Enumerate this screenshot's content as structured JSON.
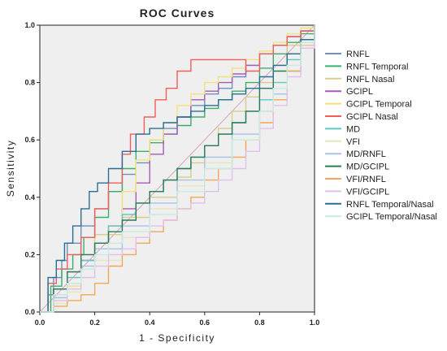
{
  "chart_data": {
    "type": "line",
    "title": "ROC Curves",
    "xlabel": "1 - Specificity",
    "ylabel": "Sensitivity",
    "xlim": [
      0,
      1
    ],
    "ylim": [
      0,
      1
    ],
    "xticks": [
      "0.0",
      "0.2",
      "0.4",
      "0.6",
      "0.8",
      "1.0"
    ],
    "yticks": [
      "0.0",
      "0.2",
      "0.4",
      "0.6",
      "0.8",
      "1.0"
    ],
    "grid": false,
    "background": "#efefef",
    "legend_position": "right",
    "reference_line": {
      "x": [
        0,
        1
      ],
      "y": [
        0,
        1
      ]
    },
    "series": [
      {
        "name": "RNFL",
        "color": "#6f8fc4",
        "x": [
          0,
          0.03,
          0.05,
          0.08,
          0.1,
          0.15,
          0.2,
          0.25,
          0.3,
          0.35,
          0.4,
          0.45,
          0.5,
          0.55,
          0.6,
          0.65,
          0.7,
          0.75,
          0.8,
          0.85,
          0.9,
          0.95,
          1.0
        ],
        "y": [
          0,
          0.06,
          0.12,
          0.18,
          0.24,
          0.3,
          0.36,
          0.42,
          0.48,
          0.52,
          0.6,
          0.64,
          0.68,
          0.72,
          0.76,
          0.78,
          0.82,
          0.86,
          0.9,
          0.93,
          0.96,
          0.98,
          1.0
        ]
      },
      {
        "name": "RNFL Temporal",
        "color": "#3cb06a",
        "x": [
          0,
          0.04,
          0.08,
          0.12,
          0.16,
          0.2,
          0.25,
          0.3,
          0.35,
          0.4,
          0.45,
          0.5,
          0.55,
          0.6,
          0.65,
          0.7,
          0.75,
          0.8,
          0.85,
          0.9,
          0.95,
          1.0
        ],
        "y": [
          0,
          0.09,
          0.15,
          0.2,
          0.26,
          0.33,
          0.42,
          0.5,
          0.56,
          0.59,
          0.62,
          0.65,
          0.68,
          0.71,
          0.74,
          0.77,
          0.8,
          0.85,
          0.9,
          0.94,
          0.97,
          1.0
        ]
      },
      {
        "name": "RNFL Nasal",
        "color": "#d8cd8a",
        "x": [
          0,
          0.05,
          0.1,
          0.15,
          0.2,
          0.3,
          0.4,
          0.5,
          0.55,
          0.6,
          0.65,
          0.7,
          0.75,
          0.8,
          0.85,
          0.9,
          1.0
        ],
        "y": [
          0,
          0.05,
          0.12,
          0.2,
          0.27,
          0.33,
          0.4,
          0.47,
          0.52,
          0.58,
          0.64,
          0.7,
          0.75,
          0.8,
          0.86,
          0.93,
          1.0
        ]
      },
      {
        "name": "GCIPL",
        "color": "#a85bb5",
        "x": [
          0,
          0.05,
          0.1,
          0.15,
          0.2,
          0.25,
          0.3,
          0.35,
          0.4,
          0.45,
          0.5,
          0.55,
          0.6,
          0.65,
          0.7,
          0.75,
          0.8,
          0.85,
          0.9,
          0.95,
          1.0
        ],
        "y": [
          0,
          0.08,
          0.14,
          0.18,
          0.24,
          0.3,
          0.36,
          0.45,
          0.55,
          0.62,
          0.68,
          0.74,
          0.77,
          0.8,
          0.83,
          0.86,
          0.9,
          0.93,
          0.96,
          0.98,
          1.0
        ]
      },
      {
        "name": "GCIPL Temporal",
        "color": "#f2e27a",
        "x": [
          0,
          0.05,
          0.1,
          0.15,
          0.2,
          0.25,
          0.3,
          0.35,
          0.4,
          0.45,
          0.5,
          0.55,
          0.6,
          0.65,
          0.7,
          0.75,
          0.8,
          0.85,
          0.9,
          0.95,
          1.0
        ],
        "y": [
          0,
          0.04,
          0.09,
          0.15,
          0.22,
          0.3,
          0.42,
          0.53,
          0.6,
          0.66,
          0.72,
          0.76,
          0.8,
          0.82,
          0.85,
          0.88,
          0.91,
          0.94,
          0.97,
          0.99,
          1.0
        ]
      },
      {
        "name": "GCIPL Nasal",
        "color": "#f0605a",
        "x": [
          0,
          0.03,
          0.06,
          0.1,
          0.15,
          0.2,
          0.25,
          0.3,
          0.33,
          0.38,
          0.42,
          0.46,
          0.5,
          0.55,
          0.6,
          0.65,
          0.7,
          0.75,
          0.8,
          0.85,
          0.9,
          0.95,
          1.0
        ],
        "y": [
          0,
          0.1,
          0.15,
          0.2,
          0.26,
          0.36,
          0.45,
          0.55,
          0.62,
          0.68,
          0.74,
          0.78,
          0.84,
          0.88,
          0.88,
          0.88,
          0.88,
          0.84,
          0.9,
          0.93,
          0.96,
          0.98,
          1.0
        ]
      },
      {
        "name": "MD",
        "color": "#5ecac7",
        "x": [
          0,
          0.05,
          0.1,
          0.15,
          0.2,
          0.25,
          0.3,
          0.35,
          0.4,
          0.45,
          0.5,
          0.55,
          0.6,
          0.65,
          0.7,
          0.75,
          0.8,
          0.85,
          0.9,
          0.95,
          1.0
        ],
        "y": [
          0,
          0.06,
          0.12,
          0.18,
          0.24,
          0.3,
          0.34,
          0.38,
          0.42,
          0.46,
          0.5,
          0.54,
          0.58,
          0.62,
          0.66,
          0.7,
          0.74,
          0.8,
          0.88,
          0.94,
          1.0
        ]
      },
      {
        "name": "VFI",
        "color": "#e6e6c0",
        "x": [
          0,
          0.05,
          0.1,
          0.15,
          0.2,
          0.3,
          0.4,
          0.5,
          0.6,
          0.7,
          0.8,
          0.85,
          0.9,
          0.95,
          1.0
        ],
        "y": [
          0,
          0.03,
          0.07,
          0.12,
          0.18,
          0.26,
          0.36,
          0.44,
          0.52,
          0.6,
          0.7,
          0.76,
          0.84,
          0.92,
          1.0
        ]
      },
      {
        "name": "MD/RNFL",
        "color": "#a9c3e8",
        "x": [
          0,
          0.05,
          0.1,
          0.15,
          0.2,
          0.3,
          0.4,
          0.5,
          0.6,
          0.7,
          0.8,
          0.85,
          0.9,
          0.95,
          1.0
        ],
        "y": [
          0,
          0.05,
          0.1,
          0.16,
          0.22,
          0.3,
          0.38,
          0.46,
          0.54,
          0.62,
          0.7,
          0.76,
          0.84,
          0.92,
          1.0
        ]
      },
      {
        "name": "MD/GCIPL",
        "color": "#2e7a55",
        "x": [
          0,
          0.05,
          0.1,
          0.15,
          0.2,
          0.25,
          0.3,
          0.35,
          0.4,
          0.45,
          0.5,
          0.55,
          0.6,
          0.65,
          0.7,
          0.75,
          0.8,
          0.85,
          0.9,
          0.95,
          1.0
        ],
        "y": [
          0,
          0.08,
          0.14,
          0.2,
          0.24,
          0.28,
          0.32,
          0.38,
          0.42,
          0.46,
          0.5,
          0.54,
          0.58,
          0.62,
          0.66,
          0.7,
          0.78,
          0.84,
          0.9,
          0.95,
          1.0
        ]
      },
      {
        "name": "VFI/RNFL",
        "color": "#f2a857",
        "x": [
          0,
          0.05,
          0.1,
          0.15,
          0.2,
          0.25,
          0.3,
          0.35,
          0.4,
          0.45,
          0.5,
          0.55,
          0.6,
          0.65,
          0.7,
          0.75,
          0.8,
          0.85,
          0.9,
          0.95,
          1.0
        ],
        "y": [
          0,
          0.02,
          0.04,
          0.06,
          0.1,
          0.16,
          0.2,
          0.24,
          0.28,
          0.32,
          0.36,
          0.4,
          0.46,
          0.5,
          0.54,
          0.6,
          0.66,
          0.74,
          0.84,
          0.94,
          1.0
        ]
      },
      {
        "name": "VFI/GCIPL",
        "color": "#e3c0ec",
        "x": [
          0,
          0.05,
          0.1,
          0.15,
          0.2,
          0.25,
          0.3,
          0.35,
          0.4,
          0.45,
          0.5,
          0.55,
          0.6,
          0.65,
          0.7,
          0.75,
          0.8,
          0.85,
          0.9,
          0.95,
          1.0
        ],
        "y": [
          0,
          0.04,
          0.08,
          0.12,
          0.16,
          0.2,
          0.22,
          0.26,
          0.3,
          0.32,
          0.36,
          0.38,
          0.42,
          0.46,
          0.5,
          0.56,
          0.64,
          0.72,
          0.82,
          0.92,
          1.0
        ]
      },
      {
        "name": "RNFL Temporal/Nasal",
        "color": "#2a6f96",
        "x": [
          0,
          0.03,
          0.06,
          0.09,
          0.12,
          0.15,
          0.18,
          0.21,
          0.25,
          0.3,
          0.35,
          0.4,
          0.45,
          0.5,
          0.55,
          0.6,
          0.65,
          0.7,
          0.75,
          0.8,
          0.85,
          0.9,
          0.95,
          1.0
        ],
        "y": [
          0,
          0.12,
          0.18,
          0.24,
          0.3,
          0.36,
          0.42,
          0.45,
          0.5,
          0.56,
          0.62,
          0.64,
          0.66,
          0.68,
          0.7,
          0.72,
          0.74,
          0.76,
          0.78,
          0.82,
          0.86,
          0.9,
          0.95,
          1.0
        ]
      },
      {
        "name": "GCIPL Temporal/Nasal",
        "color": "#c7ece2",
        "x": [
          0,
          0.05,
          0.1,
          0.15,
          0.2,
          0.25,
          0.3,
          0.4,
          0.5,
          0.6,
          0.7,
          0.8,
          0.85,
          0.9,
          0.95,
          1.0
        ],
        "y": [
          0,
          0.06,
          0.1,
          0.15,
          0.2,
          0.24,
          0.28,
          0.34,
          0.42,
          0.5,
          0.6,
          0.7,
          0.78,
          0.86,
          0.94,
          1.0
        ]
      }
    ]
  }
}
